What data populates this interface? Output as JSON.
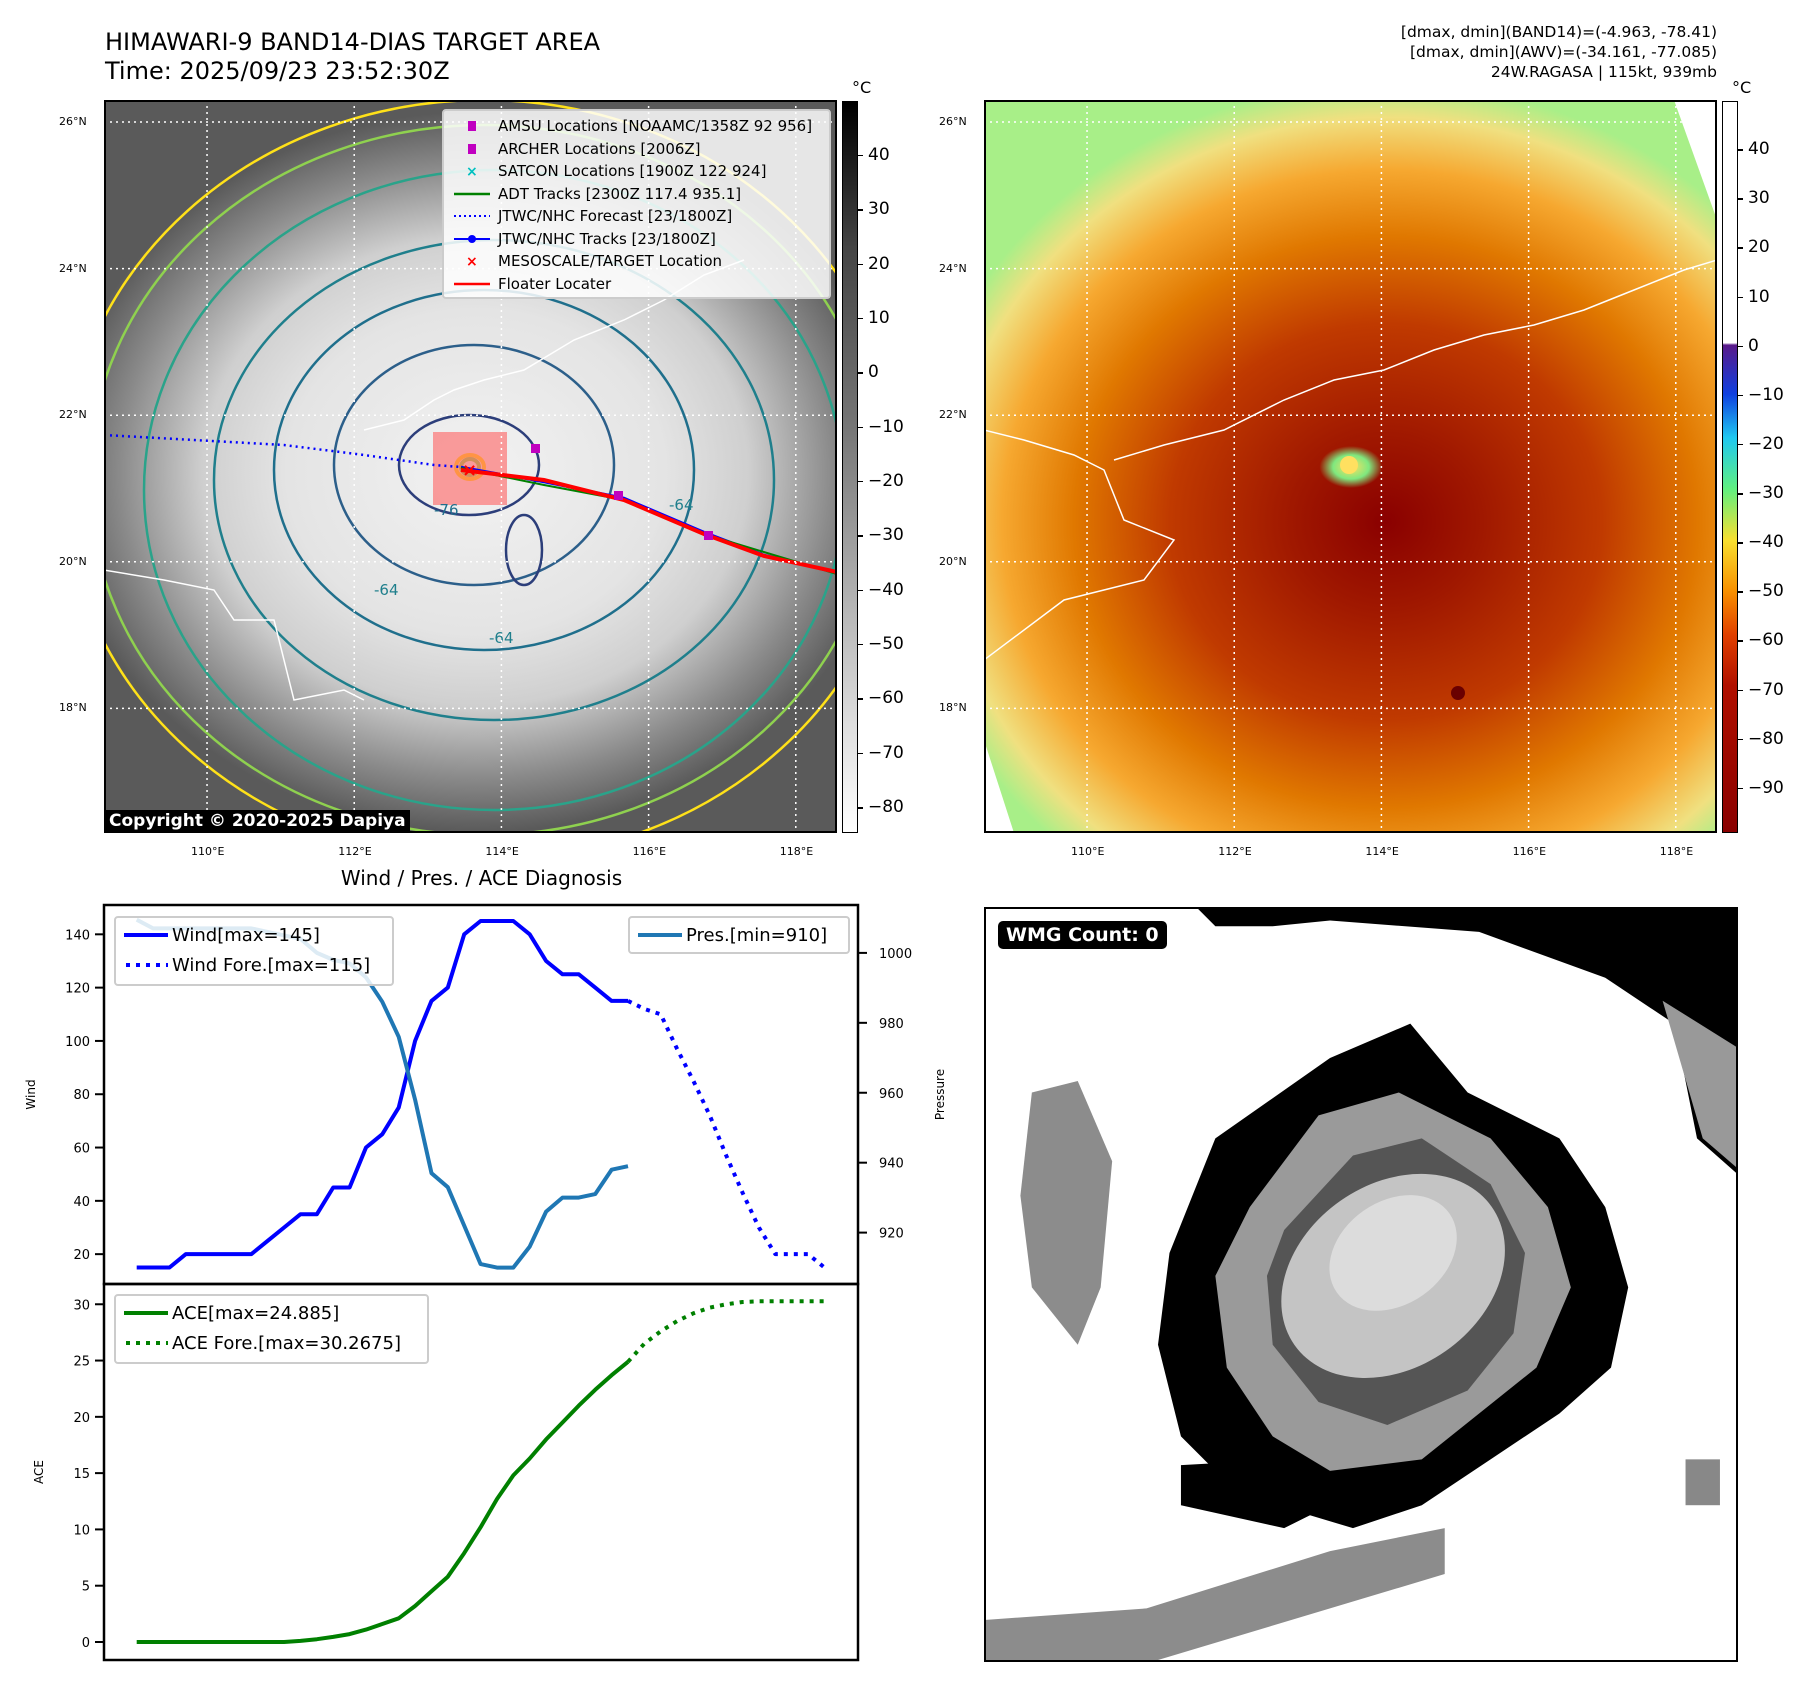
{
  "header": {
    "title_line1": "HIMAWARI-9 BAND14-DIAS TARGET AREA",
    "title_line2": "Time: 2025/09/23 23:52:30Z",
    "info_line1": "[dmax, dmin](BAND14)=(-4.963, -78.41)",
    "info_line2": "[dmax, dmin](AWV)=(-34.161, -77.085)",
    "info_line3": "24W.RAGASA | 115kt, 939mb"
  },
  "map": {
    "lat_labels": [
      "18°N",
      "20°N",
      "22°N",
      "24°N",
      "26°N"
    ],
    "lat_values": [
      18,
      20,
      22,
      24,
      26
    ],
    "lon_labels": [
      "110°E",
      "112°E",
      "114°E",
      "116°E",
      "118°E"
    ],
    "lon_values": [
      110,
      112,
      114,
      116,
      118
    ],
    "contour_labels": [
      "-76",
      "-64",
      "-64",
      "-64"
    ],
    "copyright": "Copyright © 2020-2025 Dapiya",
    "legend": [
      {
        "label": "AMSU Locations [NOAAMC/1358Z 92 956]",
        "icon": "magenta-square",
        "color": "#c000c0"
      },
      {
        "label": "ARCHER Locations [2006Z]",
        "icon": "magenta-square",
        "color": "#c000c0"
      },
      {
        "label": "SATCON Locations [1900Z 122 924]",
        "icon": "cyan-x",
        "color": "#00c0c0"
      },
      {
        "label": "ADT Tracks [2300Z 117.4 935.1]",
        "icon": "green-line",
        "color": "#008000"
      },
      {
        "label": "JTWC/NHC Forecast [23/1800Z]",
        "icon": "blue-dotted-line",
        "color": "#0000ff"
      },
      {
        "label": "JTWC/NHC Tracks [23/1800Z]",
        "icon": "blue-line-dot",
        "color": "#0000ff"
      },
      {
        "label": "MESOSCALE/TARGET Location",
        "icon": "red-x",
        "color": "#ff0000"
      },
      {
        "label": "Floater Locater",
        "icon": "red-line",
        "color": "#ff0000"
      }
    ]
  },
  "colorbar_left": {
    "unit": "°C",
    "ticks": [
      40,
      30,
      20,
      10,
      0,
      -10,
      -20,
      -30,
      -40,
      -50,
      -60,
      -70,
      -80
    ],
    "labels": [
      "40",
      "30",
      "20",
      "10",
      "0",
      "−10",
      "−20",
      "−30",
      "−40",
      "−50",
      "−60",
      "−70",
      "−80"
    ],
    "range": [
      -84.6,
      50.1
    ]
  },
  "colorbar_right": {
    "unit": "°C",
    "ticks": [
      40,
      30,
      20,
      10,
      0,
      -10,
      -20,
      -30,
      -40,
      -50,
      -60,
      -70,
      -80,
      -90
    ],
    "labels": [
      "40",
      "30",
      "20",
      "10",
      "0",
      "−10",
      "−20",
      "−30",
      "−40",
      "−50",
      "−60",
      "−70",
      "−80",
      "−90"
    ],
    "range": [
      -99,
      50
    ]
  },
  "wmg": {
    "label": "WMG Count: 0"
  },
  "chart_data": [
    {
      "type": "line",
      "title": "Wind / Pres. / ACE Diagnosis",
      "ylabel": "Wind",
      "ylabel_right": "Pressure",
      "xlim": [
        -2,
        44.05
      ],
      "ylim": [
        8.8,
        151
      ],
      "ylim_right": [
        905.3,
        1013.7
      ],
      "yticks": [
        20,
        40,
        60,
        80,
        100,
        120,
        140
      ],
      "yticks_right": [
        920,
        940,
        960,
        980,
        1000
      ],
      "series": [
        {
          "name": "Wind[max=145]",
          "style": "solid",
          "color": "#0000ff",
          "x_start": 0,
          "values": [
            15,
            15,
            15,
            20,
            20,
            20,
            20,
            20,
            25,
            30,
            35,
            35,
            45,
            45,
            60,
            65,
            75,
            100,
            115,
            120,
            140,
            145,
            145,
            145,
            140,
            130,
            125,
            125,
            120,
            115,
            115
          ]
        },
        {
          "name": "Wind Fore.[max=115]",
          "style": "dotted",
          "color": "#0000ff",
          "x_start": 30,
          "values": [
            115,
            112,
            110,
            97,
            85,
            72,
            57,
            43,
            30,
            20,
            20,
            20,
            15
          ]
        },
        {
          "name": "Pres.[min=910]",
          "style": "solid",
          "color": "#1f77b4",
          "axis": "right",
          "x_start": 0,
          "values": [
            1009.5,
            1007,
            1007,
            1007,
            1007,
            1007,
            1007,
            1007,
            1006,
            1005,
            1004,
            1000,
            998,
            997,
            993,
            986,
            976,
            958,
            937,
            933,
            922,
            911,
            910,
            910,
            916,
            926,
            930,
            930,
            931,
            938,
            939
          ]
        }
      ],
      "legend_left": [
        "Wind[max=145]",
        "Wind Fore.[max=115]"
      ],
      "legend_right": [
        "Pres.[min=910]"
      ]
    },
    {
      "type": "line",
      "ylabel": "ACE",
      "xlim": [
        -2,
        44.05
      ],
      "ylim": [
        -1.6,
        31.8
      ],
      "yticks": [
        0,
        5,
        10,
        15,
        20,
        25,
        30
      ],
      "series": [
        {
          "name": "ACE[max=24.885]",
          "style": "solid",
          "color": "#008000",
          "x_start": 0,
          "values": [
            0,
            0,
            0,
            0,
            0,
            0,
            0,
            0,
            0,
            0,
            0.1,
            0.25,
            0.45,
            0.7,
            1.1,
            1.6,
            2.1,
            3.2,
            4.5,
            5.8,
            7.9,
            10.2,
            12.7,
            14.8,
            16.3,
            18,
            19.5,
            21,
            22.4,
            23.7,
            24.885
          ]
        },
        {
          "name": "ACE Fore.[max=30.2675]",
          "style": "dotted",
          "color": "#008000",
          "x_start": 30,
          "values": [
            24.885,
            26.5,
            27.6,
            28.5,
            29.2,
            29.7,
            30.0,
            30.2,
            30.26,
            30.27,
            30.27,
            30.27,
            30.27
          ]
        }
      ]
    }
  ]
}
